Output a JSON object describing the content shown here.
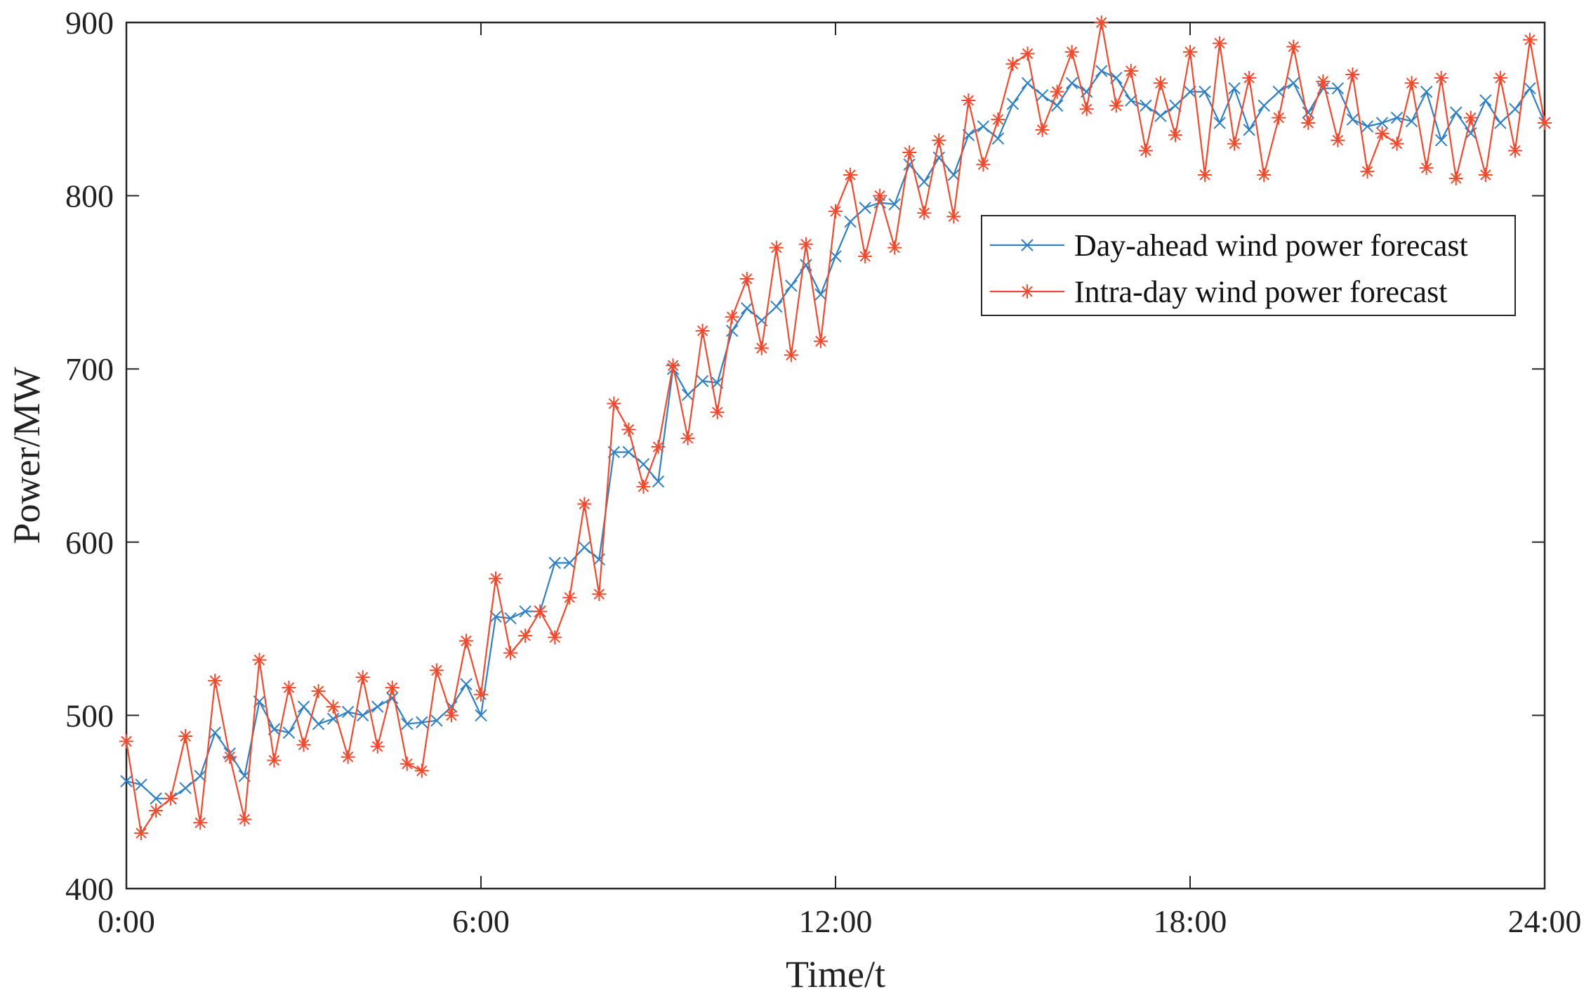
{
  "chart_data": {
    "type": "line",
    "title": "",
    "xlabel": "Time/t",
    "ylabel": "Power/MW",
    "xlim": [
      0,
      24
    ],
    "ylim": [
      400,
      900
    ],
    "grid": false,
    "legend_position": "upper-right",
    "x_ticks": [
      {
        "value": 0,
        "label": "0:00"
      },
      {
        "value": 6,
        "label": "6:00"
      },
      {
        "value": 12,
        "label": "12:00"
      },
      {
        "value": 18,
        "label": "18:00"
      },
      {
        "value": 24,
        "label": "24:00"
      }
    ],
    "y_ticks": [
      {
        "value": 400,
        "label": "400"
      },
      {
        "value": 500,
        "label": "500"
      },
      {
        "value": 600,
        "label": "600"
      },
      {
        "value": 700,
        "label": "700"
      },
      {
        "value": 800,
        "label": "800"
      },
      {
        "value": 900,
        "label": "900"
      }
    ],
    "series": [
      {
        "name": "Day-ahead wind power forecast",
        "color": "#2f7fc1",
        "marker": "x",
        "x": [
          0,
          0.25,
          0.5,
          0.75,
          1,
          1.25,
          1.5,
          1.75,
          2,
          2.25,
          2.5,
          2.75,
          3,
          3.25,
          3.5,
          3.75,
          4,
          4.25,
          4.5,
          4.75,
          5,
          5.25,
          5.5,
          5.75,
          6,
          6.25,
          6.5,
          6.75,
          7,
          7.25,
          7.5,
          7.75,
          8,
          8.25,
          8.5,
          8.75,
          9,
          9.25,
          9.5,
          9.75,
          10,
          10.25,
          10.5,
          10.75,
          11,
          11.25,
          11.5,
          11.75,
          12,
          12.25,
          12.5,
          12.75,
          13,
          13.25,
          13.5,
          13.75,
          14,
          14.25,
          14.5,
          14.75,
          15,
          15.25,
          15.5,
          15.75,
          16,
          16.25,
          16.5,
          16.75,
          17,
          17.25,
          17.5,
          17.75,
          18,
          18.25,
          18.5,
          18.75,
          19,
          19.25,
          19.5,
          19.75,
          20,
          20.25,
          20.5,
          20.75,
          21,
          21.25,
          21.5,
          21.75,
          22,
          22.25,
          22.5,
          22.75,
          23,
          23.25,
          23.5,
          23.75,
          24
        ],
        "values": [
          462,
          460,
          452,
          452,
          458,
          465,
          490,
          478,
          465,
          508,
          492,
          490,
          505,
          495,
          498,
          502,
          500,
          505,
          510,
          495,
          496,
          497,
          505,
          518,
          500,
          557,
          556,
          560,
          560,
          588,
          588,
          597,
          590,
          652,
          652,
          645,
          635,
          700,
          685,
          693,
          692,
          722,
          735,
          728,
          736,
          748,
          760,
          743,
          765,
          785,
          793,
          796,
          795,
          818,
          808,
          822,
          812,
          835,
          840,
          833,
          853,
          865,
          858,
          852,
          865,
          860,
          872,
          868,
          855,
          852,
          846,
          852,
          860,
          860,
          842,
          862,
          838,
          852,
          860,
          865,
          848,
          862,
          862,
          844,
          840,
          842,
          845,
          843,
          860,
          832,
          848,
          836,
          855,
          842,
          850,
          862,
          842
        ]
      },
      {
        "name": "Intra-day wind power forecast",
        "color": "#f04a2e",
        "marker": "*",
        "x": [
          0,
          0.25,
          0.5,
          0.75,
          1,
          1.25,
          1.5,
          1.75,
          2,
          2.25,
          2.5,
          2.75,
          3,
          3.25,
          3.5,
          3.75,
          4,
          4.25,
          4.5,
          4.75,
          5,
          5.25,
          5.5,
          5.75,
          6,
          6.25,
          6.5,
          6.75,
          7,
          7.25,
          7.5,
          7.75,
          8,
          8.25,
          8.5,
          8.75,
          9,
          9.25,
          9.5,
          9.75,
          10,
          10.25,
          10.5,
          10.75,
          11,
          11.25,
          11.5,
          11.75,
          12,
          12.25,
          12.5,
          12.75,
          13,
          13.25,
          13.5,
          13.75,
          14,
          14.25,
          14.5,
          14.75,
          15,
          15.25,
          15.5,
          15.75,
          16,
          16.25,
          16.5,
          16.75,
          17,
          17.25,
          17.5,
          17.75,
          18,
          18.25,
          18.5,
          18.75,
          19,
          19.25,
          19.5,
          19.75,
          20,
          20.25,
          20.5,
          20.75,
          21,
          21.25,
          21.5,
          21.75,
          22,
          22.25,
          22.5,
          22.75,
          23,
          23.25,
          23.5,
          23.75,
          24
        ],
        "values": [
          485,
          432,
          445,
          452,
          488,
          438,
          520,
          476,
          440,
          532,
          474,
          516,
          483,
          514,
          505,
          476,
          522,
          482,
          516,
          472,
          468,
          526,
          500,
          543,
          512,
          579,
          536,
          546,
          560,
          545,
          568,
          622,
          570,
          680,
          665,
          632,
          655,
          702,
          660,
          722,
          675,
          730,
          752,
          712,
          770,
          708,
          772,
          716,
          791,
          812,
          765,
          800,
          770,
          825,
          790,
          832,
          788,
          855,
          818,
          844,
          876,
          882,
          838,
          860,
          883,
          850,
          900,
          852,
          872,
          826,
          865,
          835,
          883,
          812,
          888,
          830,
          868,
          812,
          845,
          886,
          842,
          866,
          832,
          870,
          814,
          836,
          830,
          865,
          816,
          868,
          810,
          845,
          812,
          868,
          826,
          890,
          842
        ]
      }
    ]
  }
}
